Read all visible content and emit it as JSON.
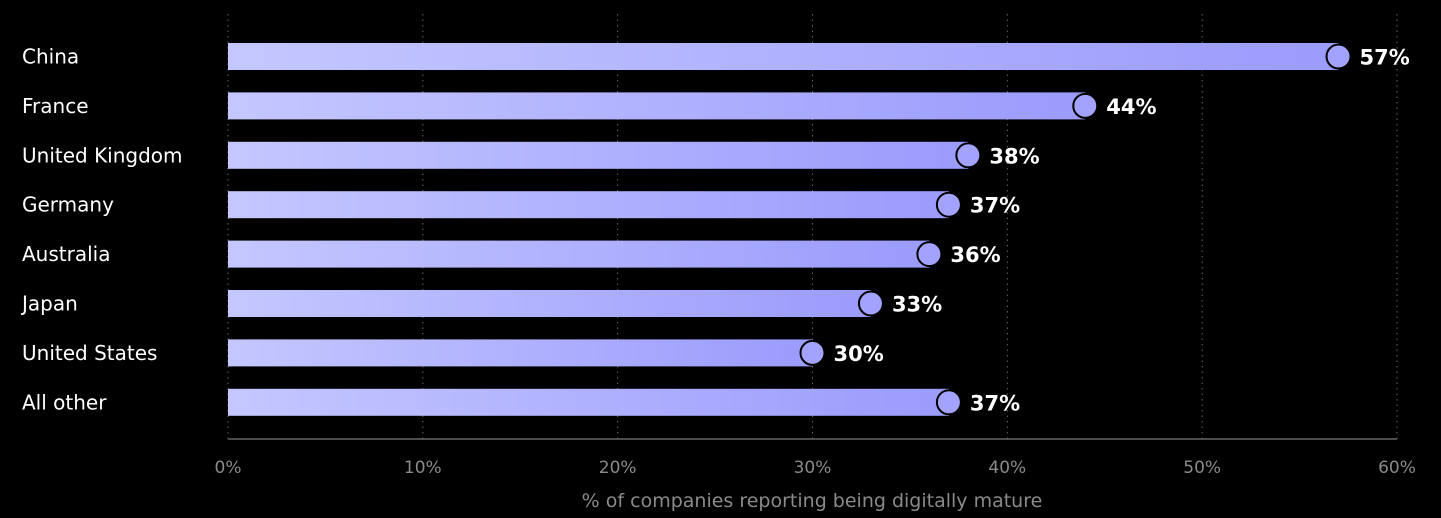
{
  "colors": {
    "background": "#000000",
    "bar_start": "#c4c7ff",
    "bar_end": "#9b9bfc",
    "marker_fill": "#a3a3ff",
    "marker_stroke": "#000000",
    "category_text": "#ffffff",
    "value_text": "#ffffff",
    "tick_text": "#8a8a8a",
    "axis_label_text": "#8a8a8a",
    "grid": "#666666",
    "axis_line": "#666666"
  },
  "chart_data": {
    "type": "bar",
    "orientation": "horizontal",
    "categories": [
      "China",
      "France",
      "United Kingdom",
      "Germany",
      "Australia",
      "Japan",
      "United States",
      "All other"
    ],
    "values": [
      57,
      44,
      38,
      37,
      36,
      33,
      30,
      37
    ],
    "value_labels": [
      "57%",
      "44%",
      "38%",
      "37%",
      "36%",
      "33%",
      "30%",
      "37%"
    ],
    "xlim": [
      0,
      60
    ],
    "xticks": [
      0,
      10,
      20,
      30,
      40,
      50,
      60
    ],
    "xtick_labels": [
      "0%",
      "10%",
      "20%",
      "30%",
      "40%",
      "50%",
      "60%"
    ],
    "xlabel": "% of companies reporting being digitally mature",
    "ylabel": "",
    "title": "",
    "grid": "vertical dotted",
    "legend": "none"
  }
}
